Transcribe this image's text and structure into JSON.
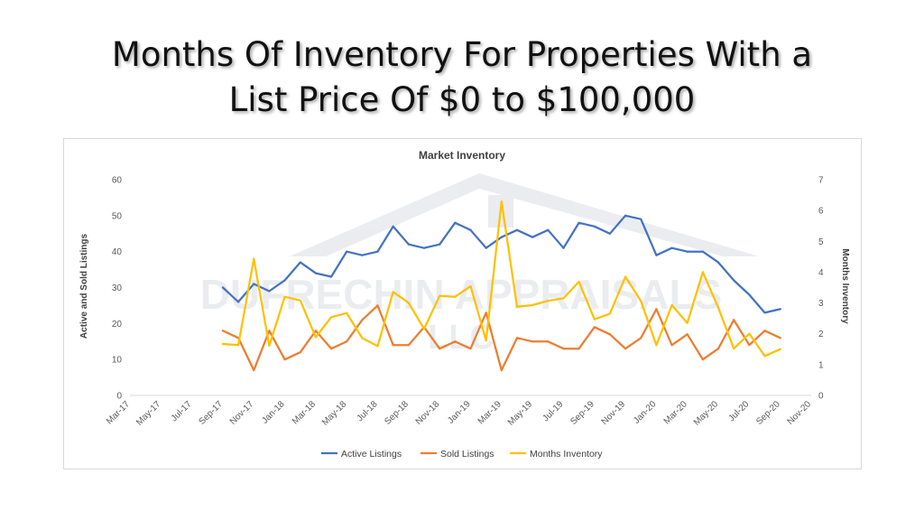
{
  "slide": {
    "title_line1": "Months Of Inventory For Properties With a",
    "title_line2": "List Price Of $0 to $100,000"
  },
  "watermark": {
    "line1": "DUFRECHIN APPRAISALS",
    "line2": "LLC"
  },
  "chart_data": {
    "type": "line",
    "title": "Market Inventory",
    "ylabel": "Active and Sold Listings",
    "y2label": "Months Inventory",
    "ylim": [
      0,
      60
    ],
    "y2lim": [
      0,
      7
    ],
    "yticks": [
      "0",
      "10",
      "20",
      "30",
      "40",
      "50",
      "60"
    ],
    "y2ticks": [
      "0",
      "1",
      "2",
      "3",
      "4",
      "5",
      "6",
      "7"
    ],
    "x_tick_labels": [
      "Mar-17",
      "May-17",
      "Jul-17",
      "Sep-17",
      "Nov-17",
      "Jan-18",
      "Mar-18",
      "May-18",
      "Jul-18",
      "Sep-18",
      "Nov-18",
      "Jan-19",
      "Mar-19",
      "May-19",
      "Jul-19",
      "Sep-19",
      "Nov-19",
      "Jan-20",
      "Mar-20",
      "May-20",
      "Jul-20",
      "Sep-20",
      "Nov-20"
    ],
    "categories": [
      "Sep-17",
      "Oct-17",
      "Nov-17",
      "Dec-17",
      "Jan-18",
      "Feb-18",
      "Mar-18",
      "Apr-18",
      "May-18",
      "Jun-18",
      "Jul-18",
      "Aug-18",
      "Sep-18",
      "Oct-18",
      "Nov-18",
      "Dec-18",
      "Jan-19",
      "Feb-19",
      "Mar-19",
      "Apr-19",
      "May-19",
      "Jun-19",
      "Jul-19",
      "Aug-19",
      "Sep-19",
      "Oct-19",
      "Nov-19",
      "Dec-19",
      "Jan-20",
      "Feb-20",
      "Mar-20",
      "Apr-20",
      "May-20",
      "Jun-20",
      "Jul-20",
      "Aug-20",
      "Sep-20"
    ],
    "series": [
      {
        "name": "Active Listings",
        "axis": "left",
        "color": "#4472C4",
        "values": [
          30,
          26,
          31,
          29,
          32,
          37,
          34,
          33,
          40,
          39,
          40,
          47,
          42,
          41,
          42,
          48,
          46,
          41,
          44,
          46,
          44,
          46,
          41,
          48,
          47,
          45,
          50,
          49,
          39,
          41,
          40,
          40,
          37,
          32,
          28,
          23,
          24
        ]
      },
      {
        "name": "Sold Listings",
        "axis": "left",
        "color": "#ED7D31",
        "values": [
          18,
          16,
          7,
          18,
          10,
          12,
          18,
          13,
          15,
          21,
          25,
          14,
          14,
          19,
          13,
          15,
          13,
          23,
          7,
          16,
          15,
          15,
          13,
          13,
          19,
          17,
          13,
          16,
          24,
          14,
          17,
          10,
          13,
          21,
          14,
          18,
          16
        ]
      },
      {
        "name": "Months Inventory",
        "axis": "right",
        "color": "#FFC000",
        "values": [
          1.67,
          1.63,
          4.43,
          1.61,
          3.2,
          3.08,
          1.89,
          2.54,
          2.67,
          1.86,
          1.6,
          3.36,
          3.0,
          2.16,
          3.23,
          3.2,
          3.54,
          1.78,
          6.29,
          2.88,
          2.93,
          3.07,
          3.15,
          3.69,
          2.47,
          2.65,
          3.85,
          3.06,
          1.63,
          2.93,
          2.35,
          4.0,
          2.85,
          1.52,
          2.0,
          1.28,
          1.5
        ]
      }
    ],
    "legend_position": "bottom",
    "grid": false
  }
}
